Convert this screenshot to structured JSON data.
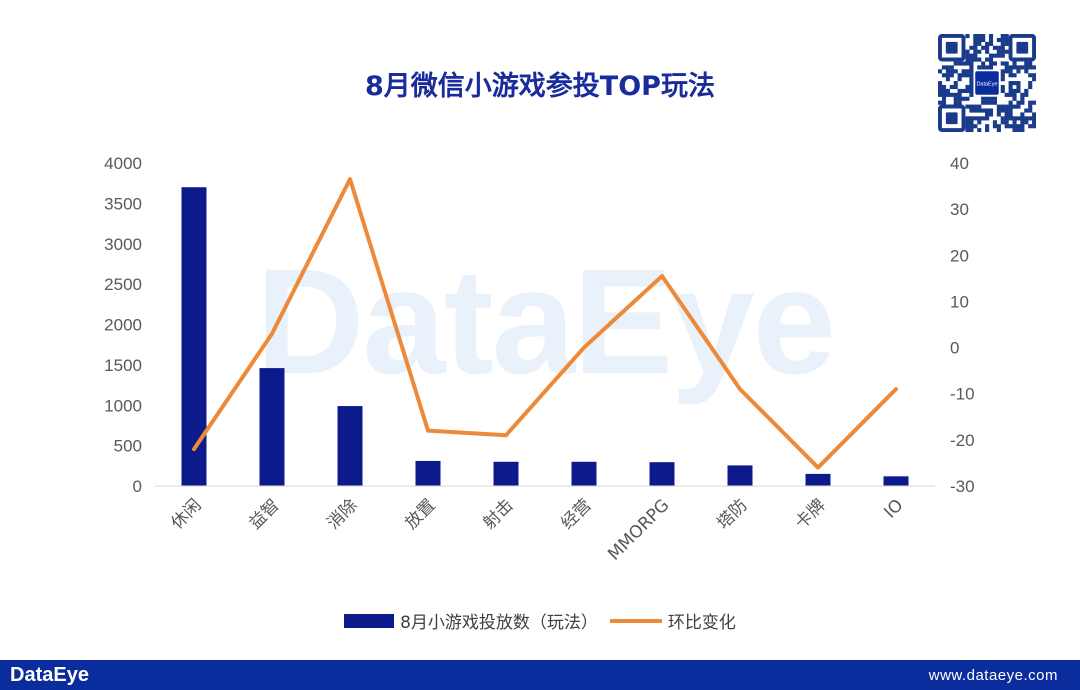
{
  "title": "8月微信小游戏参投TOP玩法",
  "watermark": "DataEye",
  "footer": {
    "brand": "DataEye",
    "url": "www.dataeye.com"
  },
  "qr_logo_text": "DataEye",
  "chart_data": {
    "type": "bar+line",
    "categories": [
      "休闲",
      "益智",
      "消除",
      "放置",
      "射击",
      "经营",
      "MMORPG",
      "塔防",
      "卡牌",
      "IO"
    ],
    "series": [
      {
        "name": "8月小游戏投放数（玩法）",
        "type": "bar",
        "axis": "left",
        "color": "#0d1a8c",
        "values": [
          3700,
          1460,
          990,
          310,
          300,
          300,
          295,
          255,
          150,
          120
        ]
      },
      {
        "name": "环比变化",
        "type": "line",
        "axis": "right",
        "color": "#ed8a39",
        "values": [
          -22,
          3,
          36.5,
          -18,
          -19,
          0,
          15.5,
          -9,
          -26,
          -9
        ]
      }
    ],
    "left_axis": {
      "min": 0,
      "max": 4000,
      "ticks": [
        0,
        500,
        1000,
        1500,
        2000,
        2500,
        3000,
        3500,
        4000
      ]
    },
    "right_axis": {
      "min": -30,
      "max": 40,
      "ticks": [
        -30,
        -20,
        -10,
        0,
        10,
        20,
        30,
        40
      ]
    },
    "legend_position": "bottom",
    "grid": false
  }
}
